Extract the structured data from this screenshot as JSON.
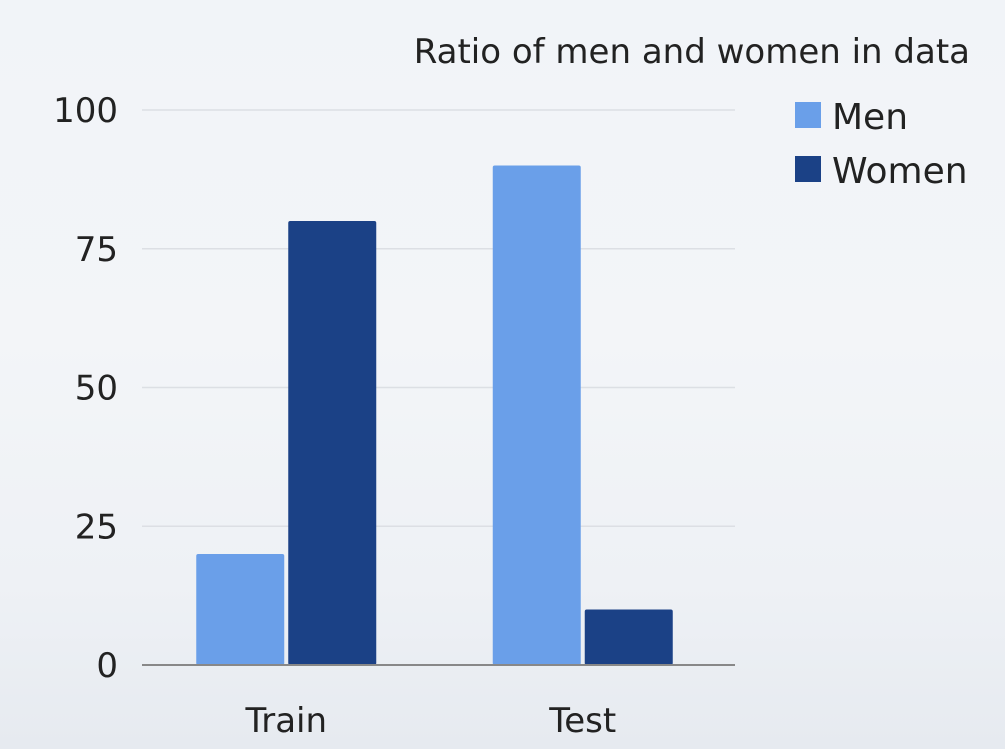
{
  "chart_data": {
    "type": "bar",
    "title": "Ratio of men and women in data",
    "xlabel": "",
    "ylabel": "",
    "categories": [
      "Train",
      "Test"
    ],
    "series": [
      {
        "name": "Men",
        "values": [
          20,
          90
        ],
        "color": "#6a9fe9"
      },
      {
        "name": "Women",
        "values": [
          80,
          10
        ],
        "color": "#1b4186"
      }
    ],
    "ylim": [
      0,
      100
    ],
    "yticks": [
      0,
      25,
      50,
      75,
      100
    ],
    "grid": true,
    "legend_position": "top-right"
  }
}
